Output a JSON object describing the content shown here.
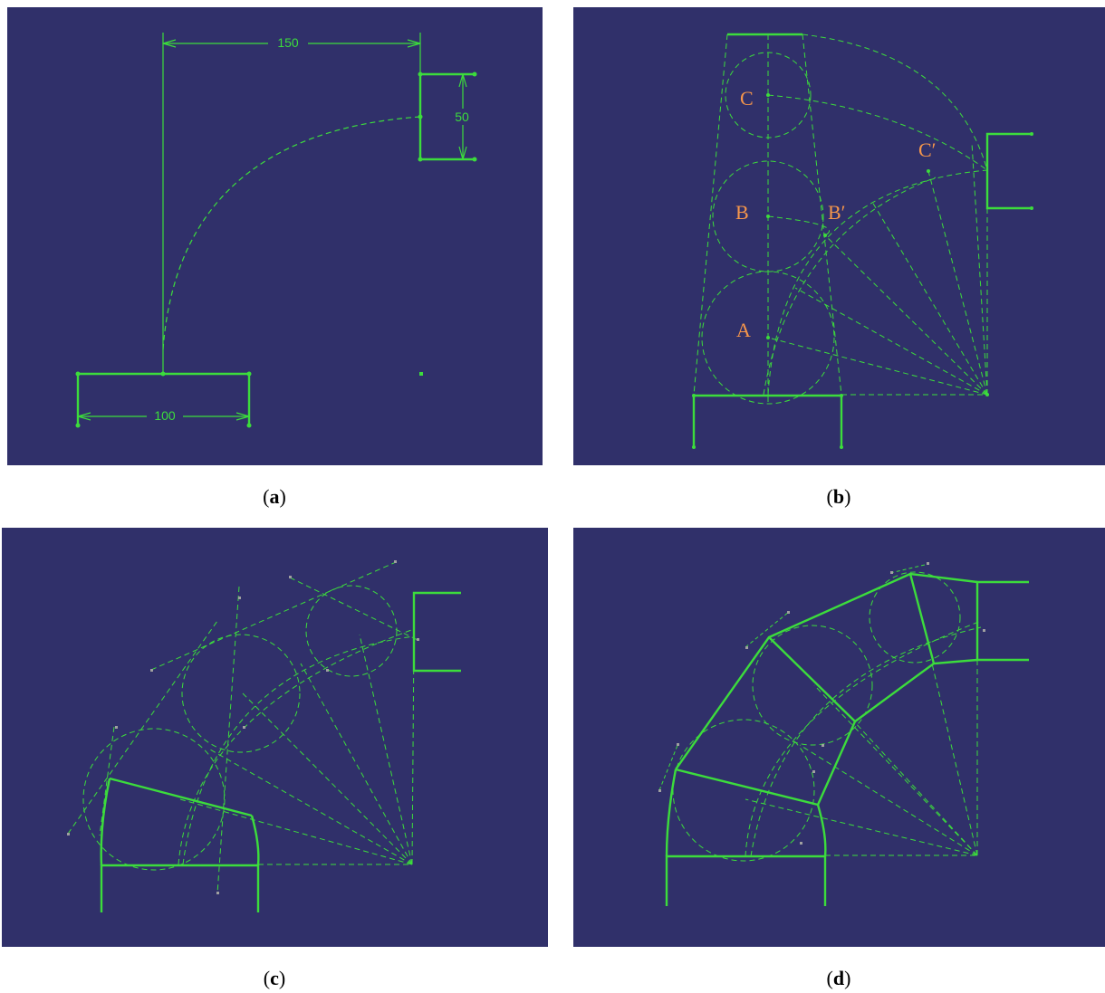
{
  "colors": {
    "background": "#30306a",
    "sketch": "#3cdc3c",
    "labels": "#f5964b",
    "construction_points": "#a0a0a0"
  },
  "panels": [
    {
      "id": "a",
      "caption": "a",
      "dimensions": {
        "width": "150",
        "height": "50",
        "base": "100"
      }
    },
    {
      "id": "b",
      "caption": "b",
      "labels": {
        "c": "C",
        "c_prime": "C′",
        "b": "B",
        "b_prime": "B′",
        "a": "A"
      }
    },
    {
      "id": "c",
      "caption": "c"
    },
    {
      "id": "d",
      "caption": "d"
    }
  ]
}
